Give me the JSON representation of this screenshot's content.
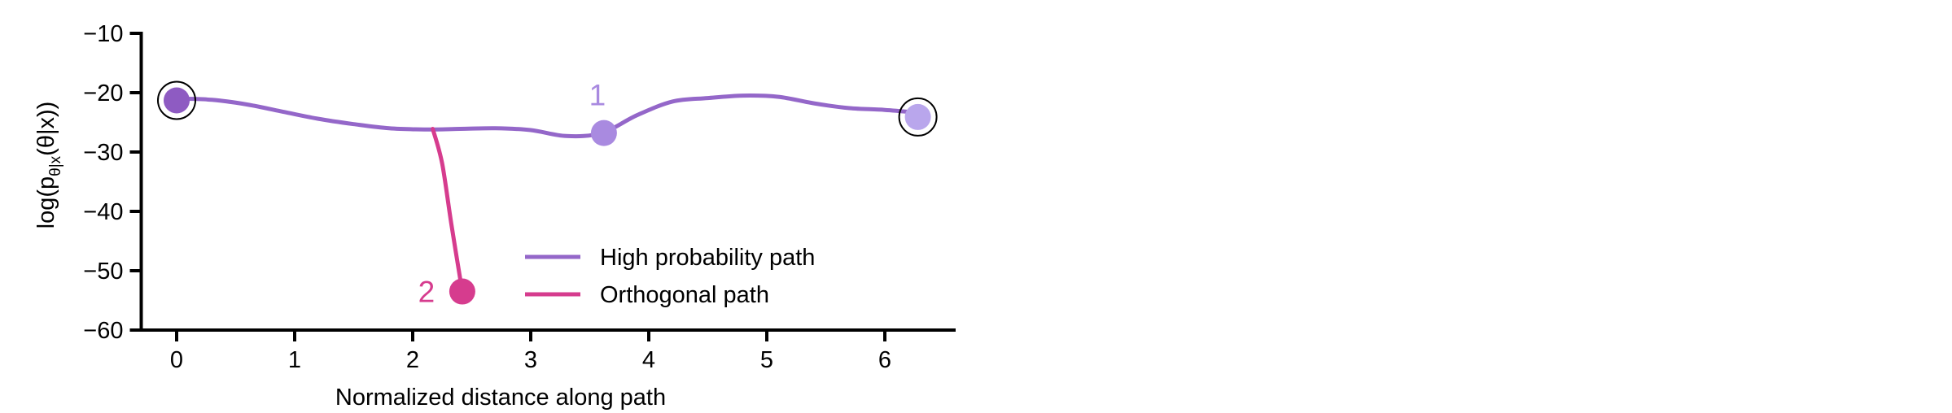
{
  "chart_data": {
    "type": "line",
    "xlabel": "Normalized distance along path",
    "ylabel_prefix": "log(p",
    "ylabel_subscript": "θ|x",
    "ylabel_suffix": "(θ|x))",
    "xlim": [
      -0.3,
      6.6
    ],
    "ylim": [
      -60,
      -10
    ],
    "xticks": [
      0,
      1,
      2,
      3,
      4,
      5,
      6
    ],
    "xtick_labels": [
      "0",
      "1",
      "2",
      "3",
      "4",
      "5",
      "6"
    ],
    "yticks": [
      -10,
      -20,
      -30,
      -40,
      -50,
      -60
    ],
    "ytick_labels": [
      "−10",
      "−20",
      "−30",
      "−40",
      "−50",
      "−60"
    ],
    "grid": false,
    "legend_position": "bottom-right",
    "series": [
      {
        "name": "High probability path",
        "color": "#9467c9",
        "x": [
          0.0,
          0.3,
          0.6,
          0.9,
          1.2,
          1.5,
          1.8,
          2.1,
          2.4,
          2.7,
          3.0,
          3.3,
          3.6,
          3.9,
          4.2,
          4.5,
          4.8,
          5.1,
          5.4,
          5.7,
          6.0,
          6.3
        ],
        "y": [
          -21.0,
          -21.2,
          -22.0,
          -23.2,
          -24.4,
          -25.3,
          -26.0,
          -26.2,
          -26.1,
          -26.0,
          -26.3,
          -27.3,
          -26.8,
          -23.8,
          -21.5,
          -20.9,
          -20.5,
          -20.7,
          -21.8,
          -22.6,
          -22.9,
          -23.4
        ]
      },
      {
        "name": "Orthogonal path",
        "color": "#d63c8e",
        "x": [
          2.17,
          2.25,
          2.33,
          2.42
        ],
        "y": [
          -26.1,
          -32.0,
          -42.5,
          -53.5
        ]
      }
    ],
    "markers": [
      {
        "x": 0.0,
        "y": -21.3,
        "color": "#8e5bc2",
        "ringed": true,
        "label": ""
      },
      {
        "x": 3.62,
        "y": -26.8,
        "color": "#a98ae0",
        "ringed": false,
        "label": "1"
      },
      {
        "x": 6.28,
        "y": -24.1,
        "color": "#b9a6ec",
        "ringed": true,
        "label": ""
      },
      {
        "x": 2.42,
        "y": -53.5,
        "color": "#d63c8e",
        "ringed": false,
        "label": "2"
      }
    ]
  }
}
